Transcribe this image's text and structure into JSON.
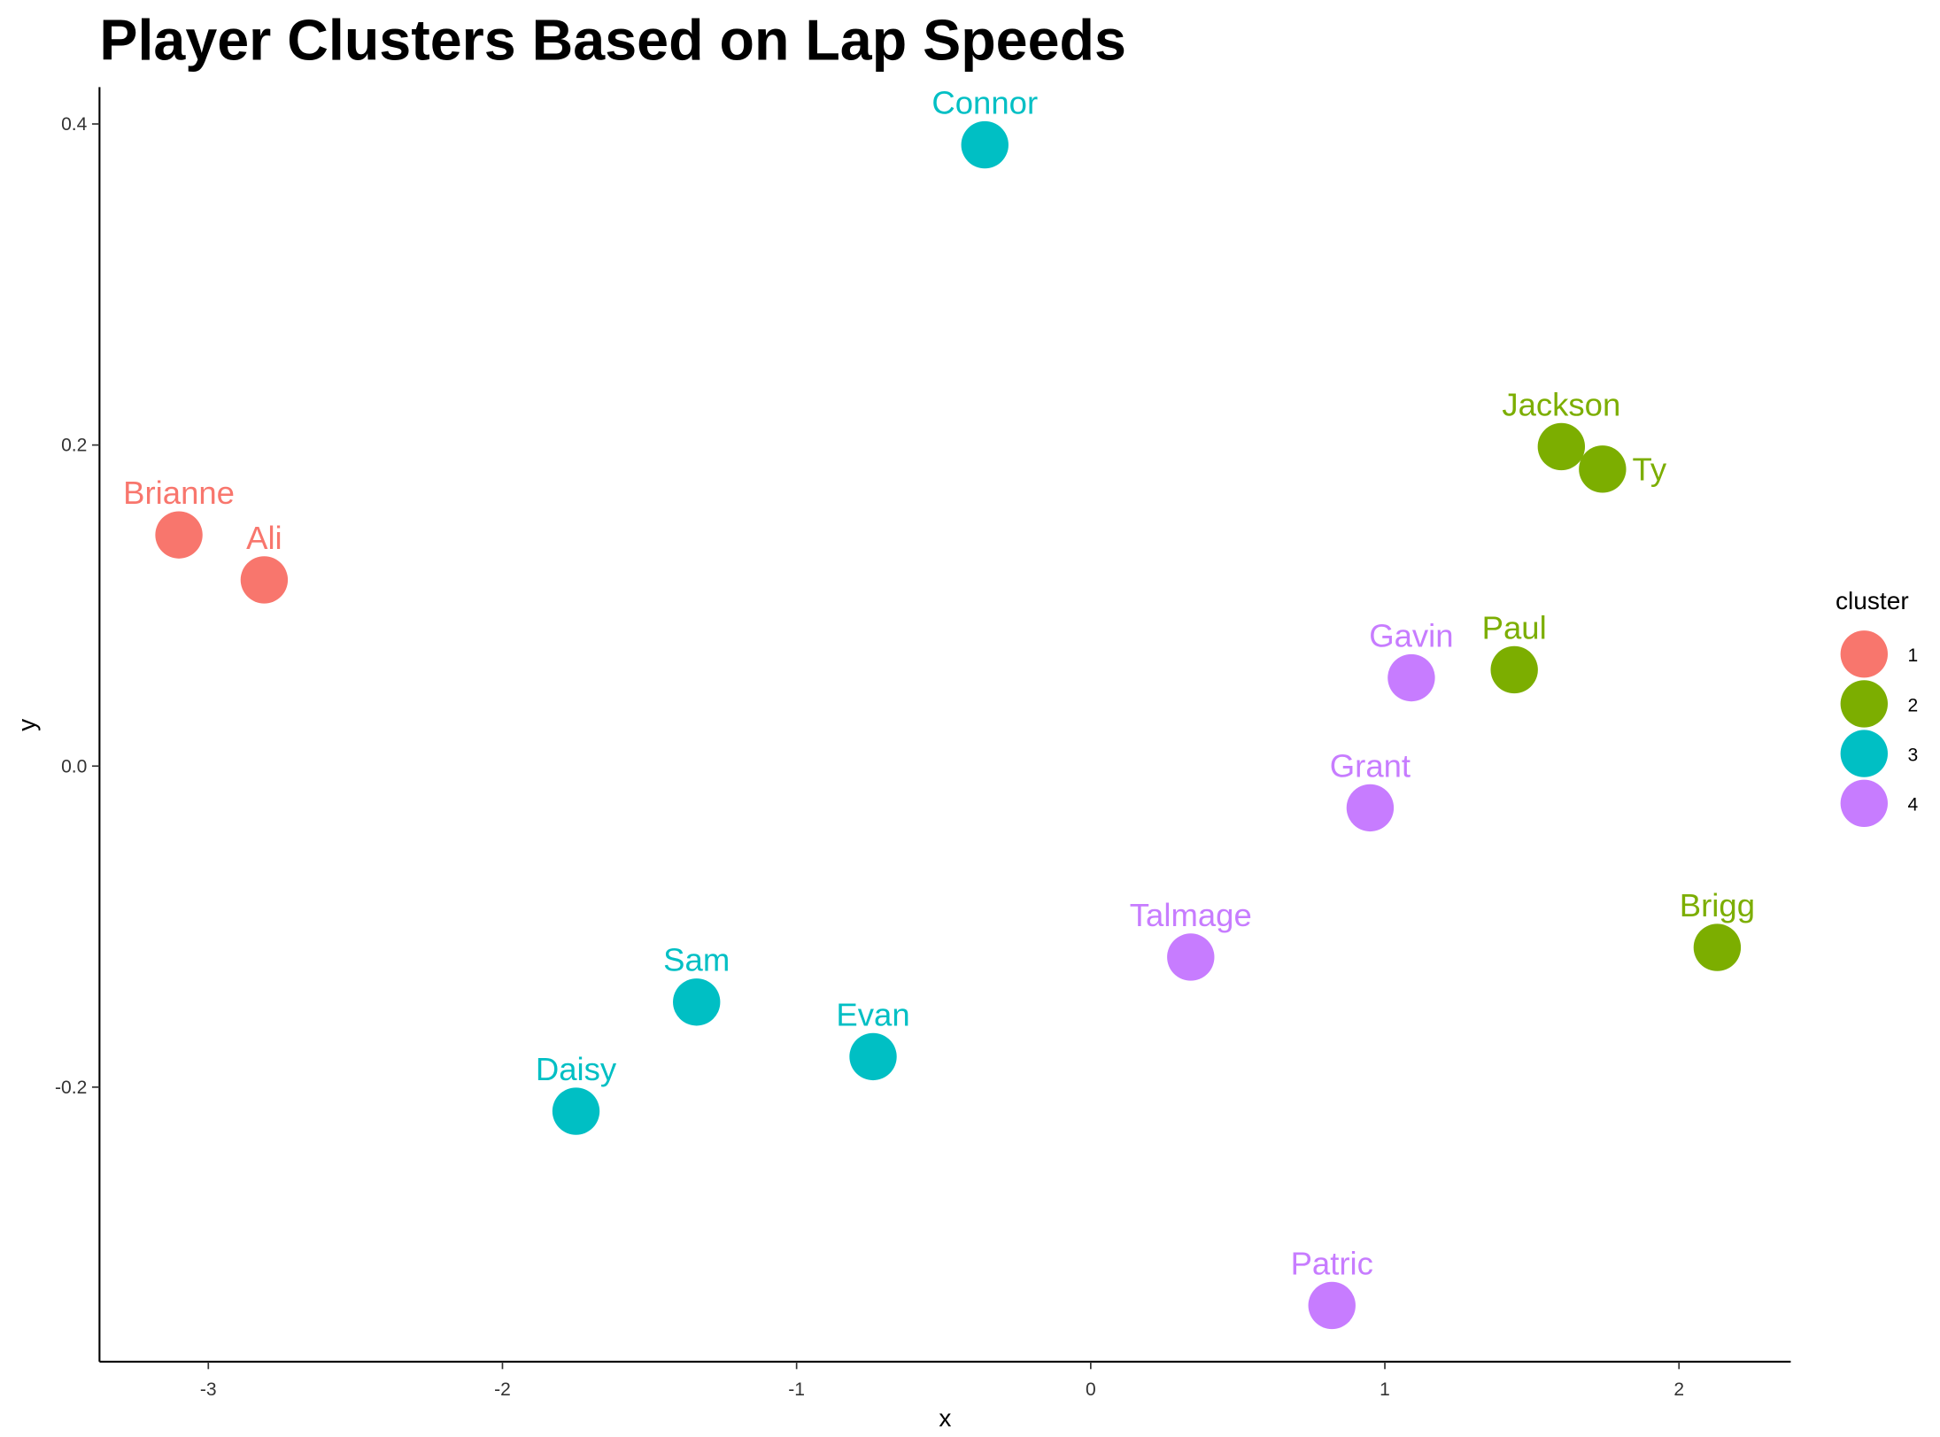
{
  "chart_data": {
    "type": "scatter",
    "title": "Player Clusters Based on Lap Speeds",
    "xlabel": "x",
    "ylabel": "y",
    "xlim": [
      -3.37,
      2.38
    ],
    "ylim": [
      -0.371,
      0.423
    ],
    "x_ticks": [
      -3,
      -2,
      -1,
      0,
      1,
      2
    ],
    "x_tick_labels": [
      "-3",
      "-2",
      "-1",
      "0",
      "1",
      "2"
    ],
    "y_ticks": [
      -0.2,
      0.0,
      0.2,
      0.4
    ],
    "y_tick_labels": [
      "-0.2",
      "0.0",
      "0.2",
      "0.4"
    ],
    "grid": false,
    "legend": {
      "title": "cluster",
      "placement": "right",
      "entries": [
        {
          "label": "1",
          "color": "#F8766D"
        },
        {
          "label": "2",
          "color": "#7CAE00"
        },
        {
          "label": "3",
          "color": "#00BFC4"
        },
        {
          "label": "4",
          "color": "#C77CFF"
        }
      ]
    },
    "points": [
      {
        "name": "Brianne",
        "x": -3.1,
        "y": 0.144,
        "cluster": "1"
      },
      {
        "name": "Ali",
        "x": -2.81,
        "y": 0.116,
        "cluster": "1"
      },
      {
        "name": "Connor",
        "x": -0.36,
        "y": 0.387,
        "cluster": "3"
      },
      {
        "name": "Jackson",
        "x": 1.6,
        "y": 0.199,
        "cluster": "2"
      },
      {
        "name": "Ty",
        "x": 1.74,
        "y": 0.185,
        "cluster": "2"
      },
      {
        "name": "Paul",
        "x": 1.44,
        "y": 0.06,
        "cluster": "2"
      },
      {
        "name": "Gavin",
        "x": 1.09,
        "y": 0.055,
        "cluster": "4"
      },
      {
        "name": "Grant",
        "x": 0.95,
        "y": -0.026,
        "cluster": "4"
      },
      {
        "name": "Brigg",
        "x": 2.13,
        "y": -0.113,
        "cluster": "2"
      },
      {
        "name": "Talmage",
        "x": 0.34,
        "y": -0.119,
        "cluster": "4"
      },
      {
        "name": "Sam",
        "x": -1.34,
        "y": -0.147,
        "cluster": "3"
      },
      {
        "name": "Evan",
        "x": -0.74,
        "y": -0.181,
        "cluster": "3"
      },
      {
        "name": "Daisy",
        "x": -1.75,
        "y": -0.215,
        "cluster": "3"
      },
      {
        "name": "Patric",
        "x": 0.82,
        "y": -0.336,
        "cluster": "4"
      }
    ]
  }
}
